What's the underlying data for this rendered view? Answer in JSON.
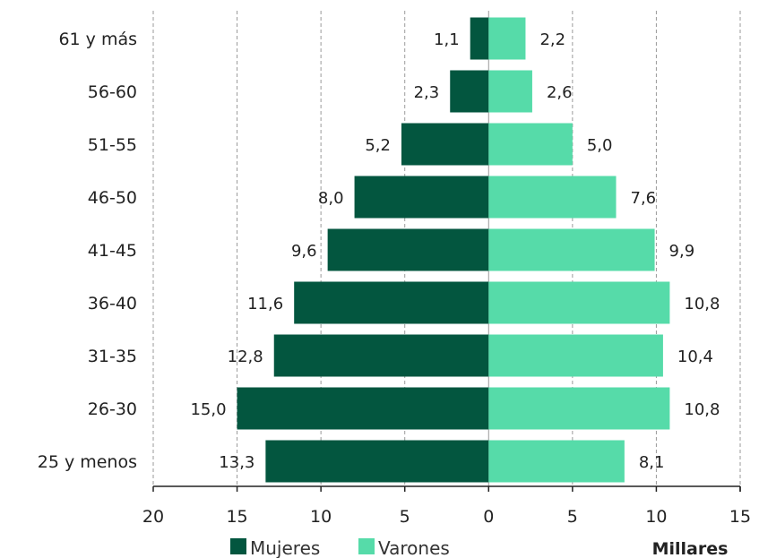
{
  "chart_data": {
    "type": "bar",
    "orientation": "horizontal",
    "layout": "population-pyramid",
    "categories": [
      "61 y más",
      "56-60",
      "51-55",
      "46-50",
      "41-45",
      "36-40",
      "31-35",
      "26-30",
      "25 y menos"
    ],
    "series": [
      {
        "name": "Mujeres",
        "color": "#03563f",
        "side": "left",
        "values": [
          1.1,
          2.3,
          5.2,
          8.0,
          9.6,
          11.6,
          12.8,
          15.0,
          13.3
        ],
        "value_labels": [
          "1,1",
          "2,3",
          "5,2",
          "8,0",
          "9,6",
          "11,6",
          "12,8",
          "15,0",
          "13,3"
        ]
      },
      {
        "name": "Varones",
        "color": "#56dba9",
        "side": "right",
        "values": [
          2.2,
          2.6,
          5.0,
          7.6,
          9.9,
          10.8,
          10.4,
          10.8,
          8.1
        ],
        "value_labels": [
          "2,2",
          "2,6",
          "5,0",
          "7,6",
          "9,9",
          "10,8",
          "10,4",
          "10,8",
          "8,1"
        ]
      }
    ],
    "x_ticks": [
      -20,
      -15,
      -10,
      -5,
      0,
      5,
      10,
      15
    ],
    "x_tick_labels": [
      "20",
      "15",
      "10",
      "5",
      "0",
      "5",
      "10",
      "15"
    ],
    "xlim": [
      -20,
      15
    ],
    "units_label": "Millares",
    "grid": "vertical dashed",
    "legend_position": "bottom"
  }
}
